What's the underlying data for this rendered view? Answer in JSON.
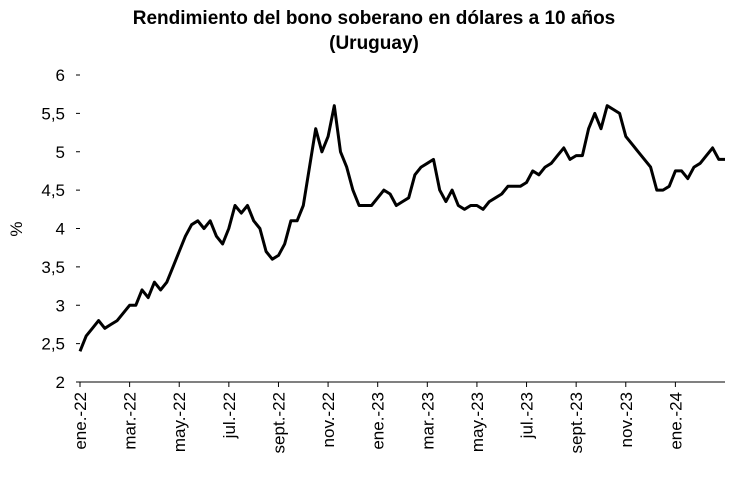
{
  "chart_data": {
    "type": "line",
    "title": "Rendimiento del bono soberano en dólares a 10 años",
    "subtitle": "(Uruguay)",
    "y_label": "%",
    "categories": [
      "ene.-22",
      null,
      null,
      null,
      null,
      null,
      null,
      null,
      "mar.-22",
      null,
      null,
      null,
      null,
      null,
      null,
      null,
      "may.-22",
      null,
      null,
      null,
      null,
      null,
      null,
      null,
      "jul.-22",
      null,
      null,
      null,
      null,
      null,
      null,
      null,
      "sept.-22",
      null,
      null,
      null,
      null,
      null,
      null,
      null,
      "nov.-22",
      null,
      null,
      null,
      null,
      null,
      null,
      null,
      "ene.-23",
      null,
      null,
      null,
      null,
      null,
      null,
      null,
      "mar.-23",
      null,
      null,
      null,
      null,
      null,
      null,
      null,
      "may.-23",
      null,
      null,
      null,
      null,
      null,
      null,
      null,
      "jul.-23",
      null,
      null,
      null,
      null,
      null,
      null,
      null,
      "sept.-23",
      null,
      null,
      null,
      null,
      null,
      null,
      null,
      "nov.-23",
      null,
      null,
      null,
      null,
      null,
      null,
      null,
      "ene.-24",
      null,
      null,
      null,
      null,
      null,
      null,
      null,
      null
    ],
    "values": [
      2.4,
      2.6,
      2.7,
      2.8,
      2.7,
      2.75,
      2.8,
      2.9,
      3.0,
      3.0,
      3.2,
      3.1,
      3.3,
      3.2,
      3.3,
      3.5,
      3.7,
      3.9,
      4.05,
      4.1,
      4.0,
      4.1,
      3.9,
      3.8,
      4.0,
      4.3,
      4.2,
      4.3,
      4.1,
      4.0,
      3.7,
      3.6,
      3.65,
      3.8,
      4.1,
      4.1,
      4.3,
      4.8,
      5.3,
      5.0,
      5.2,
      5.6,
      5.0,
      4.8,
      4.5,
      4.3,
      4.3,
      4.3,
      4.4,
      4.5,
      4.45,
      4.3,
      4.35,
      4.4,
      4.7,
      4.8,
      4.85,
      4.9,
      4.5,
      4.35,
      4.5,
      4.3,
      4.25,
      4.3,
      4.3,
      4.25,
      4.35,
      4.4,
      4.45,
      4.55,
      4.55,
      4.55,
      4.6,
      4.75,
      4.7,
      4.8,
      4.85,
      4.95,
      5.05,
      4.9,
      4.95,
      4.95,
      5.3,
      5.5,
      5.3,
      5.6,
      5.55,
      5.5,
      5.2,
      5.1,
      5.0,
      4.9,
      4.8,
      4.5,
      4.5,
      4.55,
      4.75,
      4.75,
      4.65,
      4.8,
      4.85,
      4.95,
      5.05,
      4.9,
      4.9
    ],
    "color": "#000000",
    "ylim": [
      2,
      6
    ],
    "yticks": [
      2,
      {
        "value": 2.5,
        "label": "2,5"
      },
      3,
      {
        "value": 3.5,
        "label": "3,5"
      },
      4,
      {
        "value": 4.5,
        "label": "4,5"
      },
      5,
      {
        "value": 5.5,
        "label": "5,5"
      },
      6
    ],
    "grid": false
  }
}
